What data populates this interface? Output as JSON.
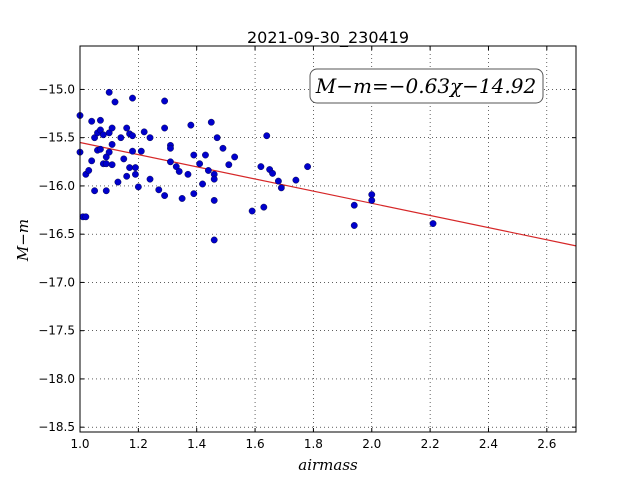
{
  "chart_data": {
    "type": "scatter",
    "title": "2021-09-30_230419",
    "xlabel": "airmass",
    "ylabel": "M−m",
    "xlim": [
      1.0,
      2.7
    ],
    "ylim": [
      -18.55,
      -14.55
    ],
    "y_inverted": true,
    "grid": true,
    "x_ticks": [
      "1.0",
      "1.2",
      "1.4",
      "1.6",
      "1.8",
      "2.0",
      "2.2",
      "2.4",
      "2.6"
    ],
    "x_tick_values": [
      1.0,
      1.2,
      1.4,
      1.6,
      1.8,
      2.0,
      2.2,
      2.4,
      2.6
    ],
    "y_ticks": [
      "−15.0",
      "−15.5",
      "−16.0",
      "−16.5",
      "−17.0",
      "−17.5",
      "−18.0",
      "−18.5"
    ],
    "y_tick_values": [
      -15.0,
      -15.5,
      -16.0,
      -16.5,
      -17.0,
      -17.5,
      -18.0,
      -18.5
    ],
    "annotation": "M−m=−0.63χ−14.92",
    "fit": {
      "slope": -0.63,
      "intercept": -14.92,
      "color": "#d62728"
    },
    "point_color": "#0000cc",
    "points": [
      [
        1.0,
        -15.27
      ],
      [
        1.0,
        -15.65
      ],
      [
        1.01,
        -16.32
      ],
      [
        1.02,
        -15.88
      ],
      [
        1.02,
        -16.32
      ],
      [
        1.03,
        -15.84
      ],
      [
        1.04,
        -15.33
      ],
      [
        1.04,
        -15.74
      ],
      [
        1.05,
        -16.05
      ],
      [
        1.05,
        -15.5
      ],
      [
        1.06,
        -15.45
      ],
      [
        1.06,
        -15.63
      ],
      [
        1.07,
        -15.42
      ],
      [
        1.07,
        -15.62
      ],
      [
        1.07,
        -15.32
      ],
      [
        1.08,
        -15.77
      ],
      [
        1.08,
        -15.47
      ],
      [
        1.09,
        -16.05
      ],
      [
        1.09,
        -15.77
      ],
      [
        1.09,
        -15.7
      ],
      [
        1.1,
        -15.03
      ],
      [
        1.1,
        -15.65
      ],
      [
        1.1,
        -15.45
      ],
      [
        1.11,
        -15.4
      ],
      [
        1.11,
        -15.57
      ],
      [
        1.11,
        -15.78
      ],
      [
        1.12,
        -15.13
      ],
      [
        1.13,
        -15.96
      ],
      [
        1.14,
        -15.5
      ],
      [
        1.15,
        -15.72
      ],
      [
        1.16,
        -15.9
      ],
      [
        1.16,
        -15.4
      ],
      [
        1.17,
        -15.81
      ],
      [
        1.17,
        -15.46
      ],
      [
        1.18,
        -15.09
      ],
      [
        1.18,
        -15.48
      ],
      [
        1.18,
        -15.64
      ],
      [
        1.19,
        -15.81
      ],
      [
        1.19,
        -15.88
      ],
      [
        1.2,
        -16.01
      ],
      [
        1.21,
        -15.64
      ],
      [
        1.22,
        -15.44
      ],
      [
        1.24,
        -15.93
      ],
      [
        1.24,
        -15.5
      ],
      [
        1.27,
        -16.04
      ],
      [
        1.29,
        -15.12
      ],
      [
        1.29,
        -15.4
      ],
      [
        1.29,
        -16.1
      ],
      [
        1.31,
        -15.58
      ],
      [
        1.31,
        -15.61
      ],
      [
        1.31,
        -15.75
      ],
      [
        1.33,
        -15.8
      ],
      [
        1.34,
        -15.85
      ],
      [
        1.35,
        -16.13
      ],
      [
        1.37,
        -15.88
      ],
      [
        1.38,
        -15.37
      ],
      [
        1.39,
        -15.68
      ],
      [
        1.39,
        -16.08
      ],
      [
        1.41,
        -15.77
      ],
      [
        1.42,
        -15.98
      ],
      [
        1.43,
        -15.68
      ],
      [
        1.44,
        -15.84
      ],
      [
        1.45,
        -15.34
      ],
      [
        1.46,
        -15.88
      ],
      [
        1.46,
        -15.93
      ],
      [
        1.46,
        -16.15
      ],
      [
        1.46,
        -16.56
      ],
      [
        1.47,
        -15.5
      ],
      [
        1.49,
        -15.61
      ],
      [
        1.51,
        -15.78
      ],
      [
        1.53,
        -15.7
      ],
      [
        1.59,
        -16.26
      ],
      [
        1.62,
        -15.8
      ],
      [
        1.63,
        -16.22
      ],
      [
        1.64,
        -15.48
      ],
      [
        1.65,
        -15.83
      ],
      [
        1.66,
        -15.87
      ],
      [
        1.68,
        -15.95
      ],
      [
        1.69,
        -16.02
      ],
      [
        1.74,
        -15.94
      ],
      [
        1.78,
        -15.8
      ],
      [
        1.94,
        -16.2
      ],
      [
        1.94,
        -16.41
      ],
      [
        2.0,
        -16.09
      ],
      [
        2.0,
        -16.15
      ],
      [
        2.21,
        -16.39
      ]
    ]
  }
}
